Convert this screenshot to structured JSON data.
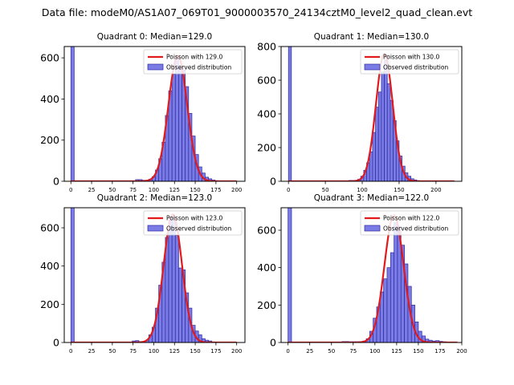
{
  "figure": {
    "suptitle": "Data file: modeM0/AS1A07_069T01_9000003570_24134cztM0_level2_quad_clean.evt"
  },
  "colors": {
    "bar_fill": "#7b7be6",
    "bar_edge": "#2a2aa0",
    "curve": "#e31a1c",
    "axes": "#000000"
  },
  "legend": {
    "observed_label": "Observed distribution",
    "placement": "top-right"
  },
  "chart_data": [
    {
      "type": "bar",
      "title": "Quadrant 0: Median=129.0",
      "median": 129.0,
      "poisson_label": "Poisson with 129.0",
      "xlim": [
        -8,
        210
      ],
      "ylim": [
        0,
        655
      ],
      "xticks": [
        0,
        25,
        50,
        75,
        100,
        125,
        150,
        175,
        200
      ],
      "yticks": [
        0,
        200,
        400,
        600
      ],
      "bin_width": 4,
      "bins": [
        [
          0,
          655
        ],
        [
          78,
          8
        ],
        [
          82,
          8
        ],
        [
          86,
          5
        ],
        [
          90,
          5
        ],
        [
          94,
          10
        ],
        [
          98,
          22
        ],
        [
          102,
          55
        ],
        [
          106,
          110
        ],
        [
          110,
          190
        ],
        [
          114,
          320
        ],
        [
          118,
          440
        ],
        [
          122,
          520
        ],
        [
          126,
          600
        ],
        [
          130,
          560
        ],
        [
          134,
          540
        ],
        [
          138,
          460
        ],
        [
          142,
          330
        ],
        [
          146,
          220
        ],
        [
          150,
          130
        ],
        [
          154,
          70
        ],
        [
          158,
          40
        ],
        [
          162,
          20
        ],
        [
          166,
          12
        ],
        [
          170,
          6
        ],
        [
          174,
          3
        ]
      ],
      "curve_mean": 129.0,
      "curve_peak": 610,
      "curve_range": [
        0,
        200
      ]
    },
    {
      "type": "bar",
      "title": "Quadrant 1: Median=130.0",
      "median": 130.0,
      "poisson_label": "Poisson with 130.0",
      "xlim": [
        -10,
        235
      ],
      "ylim": [
        0,
        800
      ],
      "xticks": [
        0,
        50,
        100,
        150,
        200
      ],
      "yticks": [
        0,
        200,
        400,
        600,
        800
      ],
      "bin_width": 4,
      "bins": [
        [
          0,
          800
        ],
        [
          82,
          5
        ],
        [
          86,
          5
        ],
        [
          90,
          6
        ],
        [
          94,
          12
        ],
        [
          98,
          30
        ],
        [
          102,
          65
        ],
        [
          106,
          110
        ],
        [
          110,
          175
        ],
        [
          114,
          290
        ],
        [
          118,
          440
        ],
        [
          122,
          530
        ],
        [
          126,
          650
        ],
        [
          130,
          720
        ],
        [
          134,
          580
        ],
        [
          138,
          480
        ],
        [
          142,
          360
        ],
        [
          146,
          240
        ],
        [
          150,
          150
        ],
        [
          154,
          90
        ],
        [
          158,
          50
        ],
        [
          162,
          30
        ],
        [
          166,
          15
        ],
        [
          170,
          8
        ],
        [
          174,
          4
        ],
        [
          178,
          2
        ]
      ],
      "curve_mean": 130.0,
      "curve_peak": 755,
      "curve_range": [
        0,
        225
      ]
    },
    {
      "type": "bar",
      "title": "Quadrant 2: Median=123.0",
      "median": 123.0,
      "poisson_label": "Poisson with 123.0",
      "xlim": [
        -8,
        210
      ],
      "ylim": [
        0,
        705
      ],
      "xticks": [
        0,
        25,
        50,
        75,
        100,
        125,
        150,
        175,
        200
      ],
      "yticks": [
        0,
        200,
        400,
        600
      ],
      "bin_width": 4,
      "bins": [
        [
          0,
          705
        ],
        [
          74,
          8
        ],
        [
          78,
          10
        ],
        [
          82,
          5
        ],
        [
          86,
          5
        ],
        [
          90,
          10
        ],
        [
          94,
          40
        ],
        [
          98,
          80
        ],
        [
          102,
          180
        ],
        [
          106,
          300
        ],
        [
          110,
          420
        ],
        [
          114,
          550
        ],
        [
          118,
          640
        ],
        [
          122,
          660
        ],
        [
          126,
          560
        ],
        [
          130,
          390
        ],
        [
          134,
          380
        ],
        [
          138,
          260
        ],
        [
          142,
          180
        ],
        [
          146,
          90
        ],
        [
          150,
          60
        ],
        [
          154,
          40
        ],
        [
          158,
          20
        ],
        [
          162,
          12
        ],
        [
          166,
          8
        ],
        [
          170,
          3
        ]
      ],
      "curve_mean": 123.0,
      "curve_peak": 670,
      "curve_range": [
        0,
        200
      ]
    },
    {
      "type": "bar",
      "title": "Quadrant 3: Median=122.0",
      "median": 122.0,
      "poisson_label": "Poisson with 122.0",
      "xlim": [
        -8,
        200
      ],
      "ylim": [
        0,
        720
      ],
      "xticks": [
        0,
        25,
        50,
        75,
        100,
        125,
        150,
        175,
        200
      ],
      "yticks": [
        0,
        200,
        400,
        600
      ],
      "bin_width": 4,
      "bins": [
        [
          0,
          720
        ],
        [
          62,
          5
        ],
        [
          66,
          5
        ],
        [
          70,
          4
        ],
        [
          74,
          4
        ],
        [
          78,
          4
        ],
        [
          82,
          5
        ],
        [
          86,
          8
        ],
        [
          90,
          20
        ],
        [
          94,
          60
        ],
        [
          98,
          130
        ],
        [
          102,
          190
        ],
        [
          106,
          270
        ],
        [
          110,
          340
        ],
        [
          114,
          400
        ],
        [
          118,
          480
        ],
        [
          122,
          640
        ],
        [
          126,
          620
        ],
        [
          130,
          520
        ],
        [
          134,
          420
        ],
        [
          138,
          300
        ],
        [
          142,
          200
        ],
        [
          146,
          110
        ],
        [
          150,
          60
        ],
        [
          154,
          35
        ],
        [
          158,
          18
        ],
        [
          162,
          12
        ],
        [
          166,
          8
        ],
        [
          170,
          10
        ],
        [
          174,
          6
        ],
        [
          178,
          4
        ]
      ],
      "curve_mean": 122.0,
      "curve_peak": 680,
      "curve_range": [
        0,
        195
      ]
    }
  ]
}
